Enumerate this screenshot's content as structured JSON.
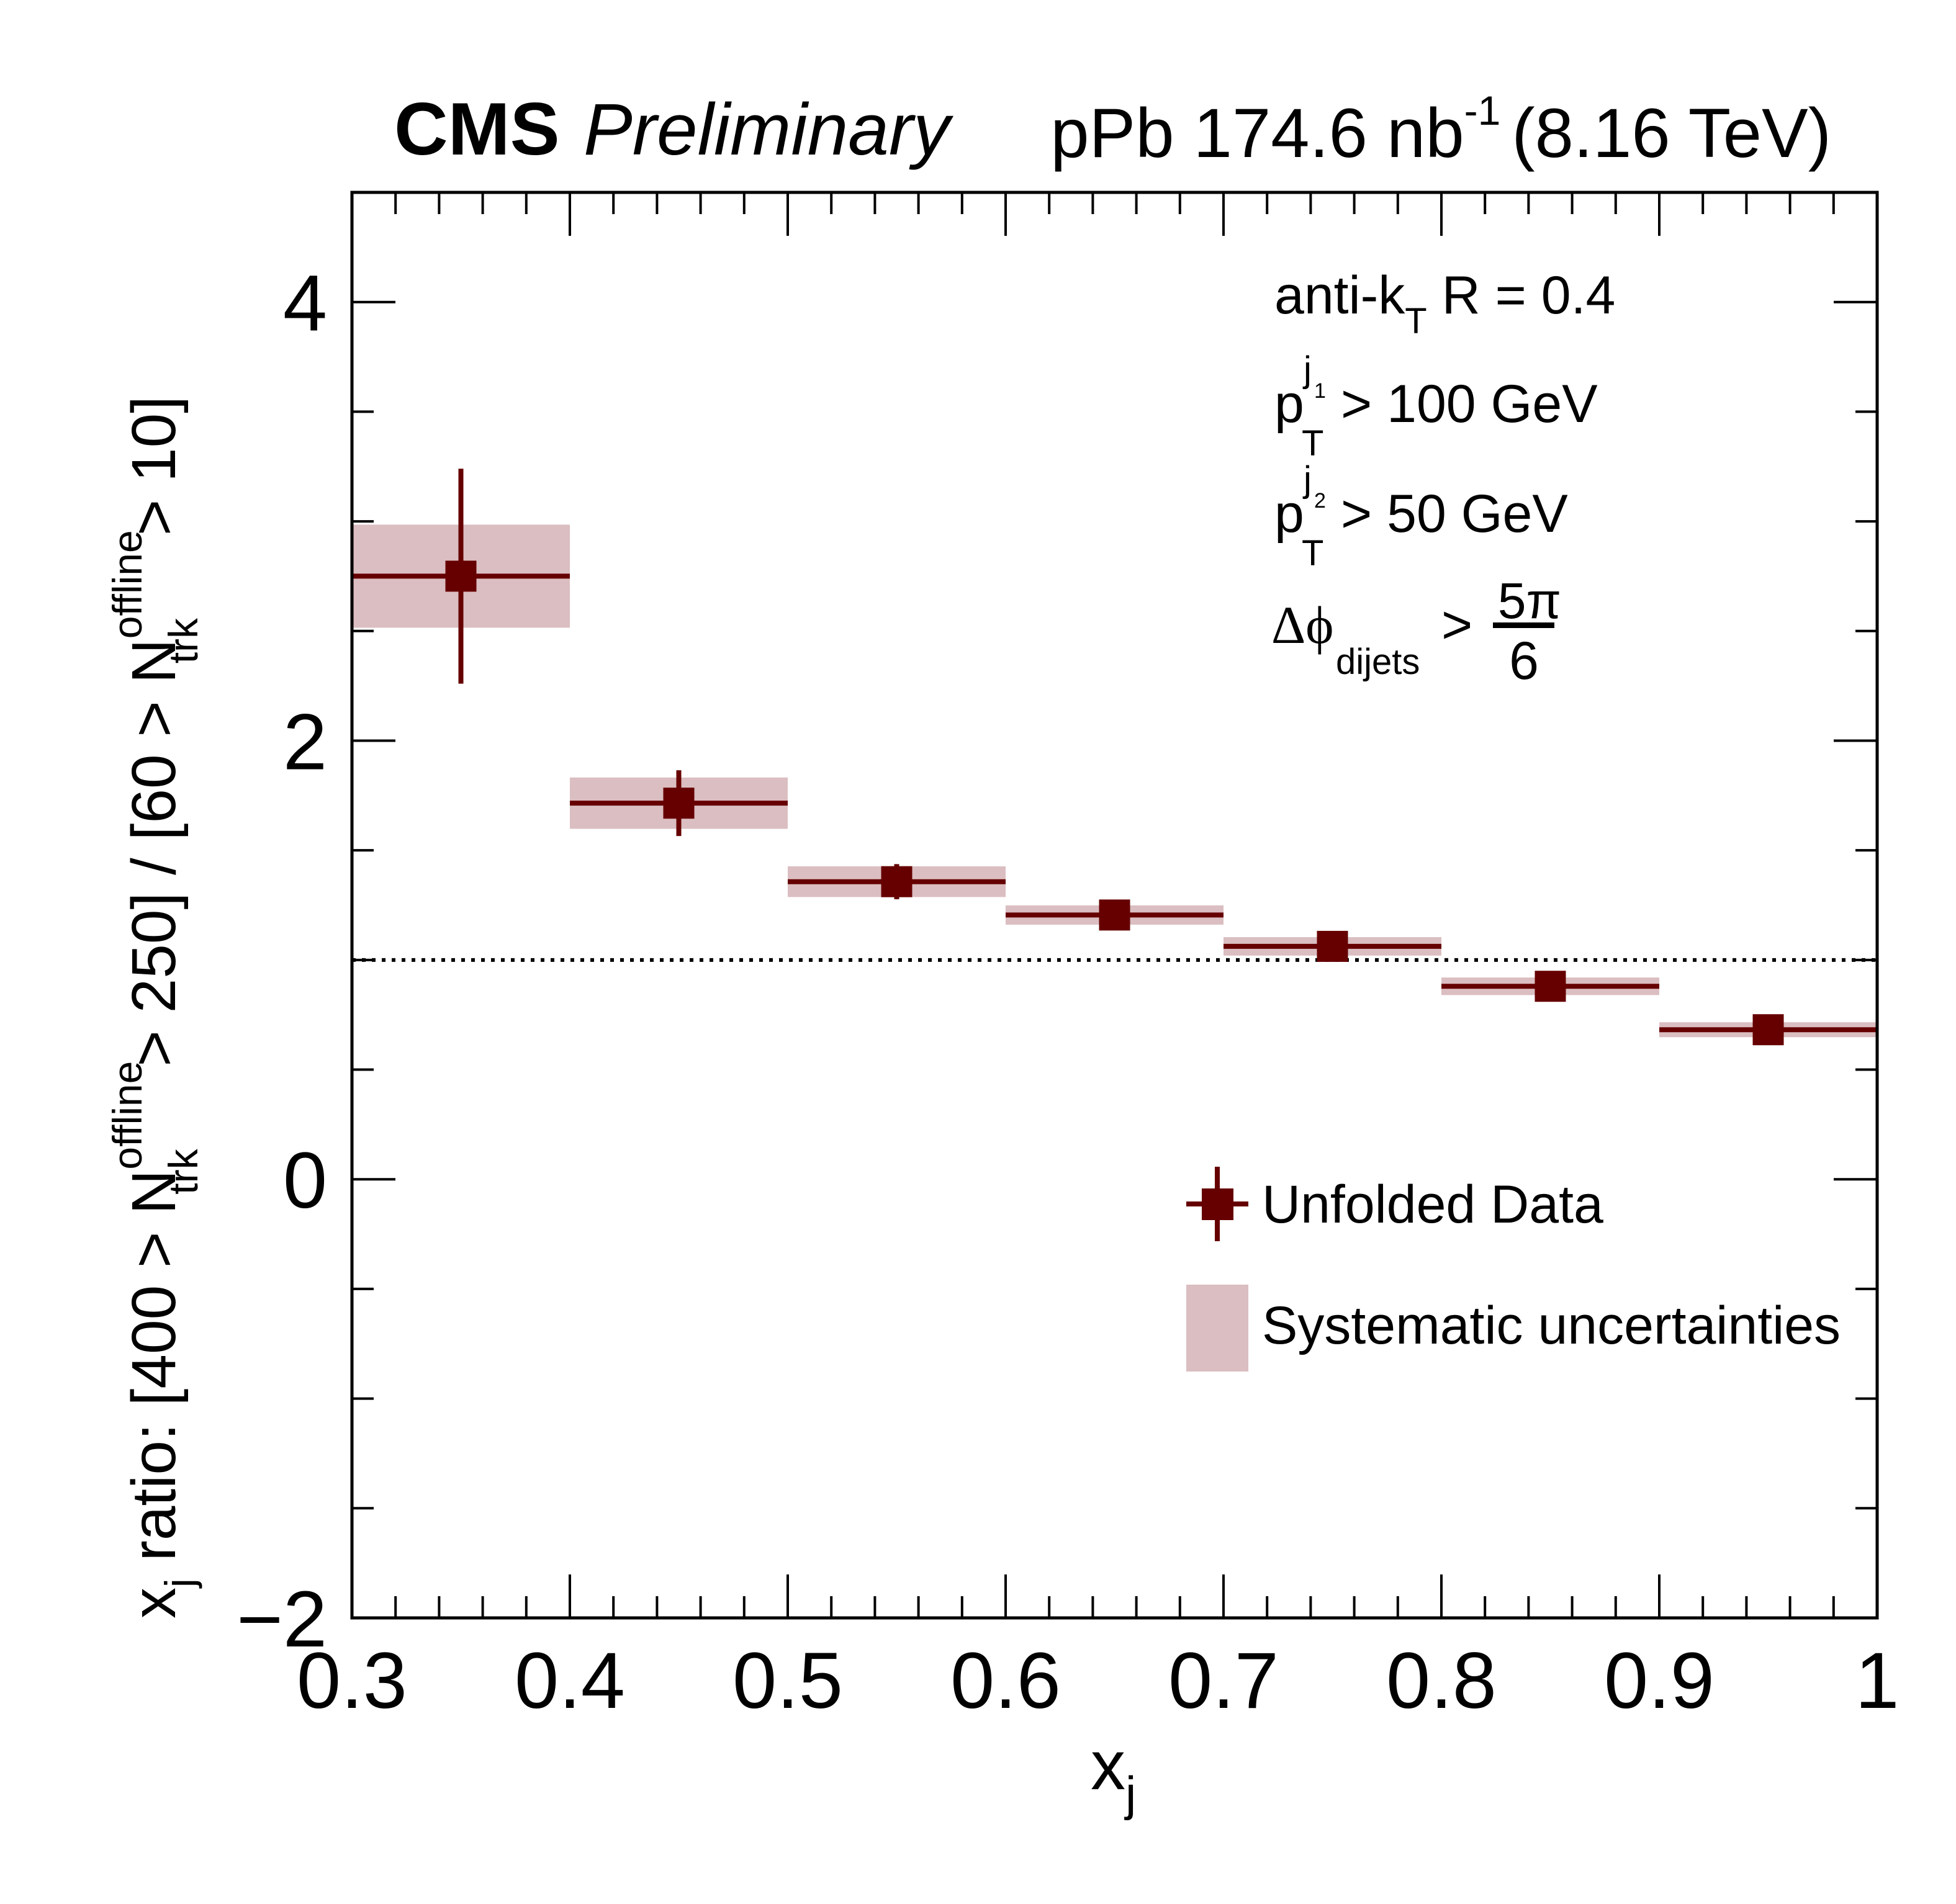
{
  "chart_data": {
    "type": "scatter",
    "title": {
      "experiment": "CMS",
      "status": "Preliminary",
      "lumi_prefix": "pPb 174.6 nb",
      "lumi_exponent": "-1",
      "energy": "(8.16 TeV)"
    },
    "xlabel": {
      "main": "x",
      "sub": "j"
    },
    "ylabel": {
      "p1": "x",
      "p1_sub": "j",
      "p2": " ratio: [400 > N",
      "n1_sup": "offline",
      "n1_sub": "trk",
      "p3": " > 250] / [60 > N",
      "n2_sup": "offline",
      "n2_sub": "trk",
      "p4": " > 10]"
    },
    "xlim": [
      0.3,
      1.0
    ],
    "ylim": [
      -2,
      4.5
    ],
    "x_ticks": [
      0.3,
      0.4,
      0.5,
      0.6,
      0.7,
      0.8,
      0.9,
      1.0
    ],
    "x_tick_labels": [
      "0.3",
      "0.4",
      "0.5",
      "0.6",
      "0.7",
      "0.8",
      "0.9",
      "1"
    ],
    "x_minor_step": 0.02,
    "y_ticks": [
      -2,
      0,
      2,
      4
    ],
    "y_tick_labels": [
      "−2",
      "0",
      "2",
      "4"
    ],
    "y_minor_step": 0.5,
    "reference_line": {
      "y": 1,
      "style": "dotted"
    },
    "series": [
      {
        "name": "Unfolded Data",
        "color": "#660000",
        "syst_color": "#dbbec1",
        "points": [
          {
            "x": 0.35,
            "x_low": 0.3,
            "x_high": 0.4,
            "y": 2.75,
            "stat": 0.49,
            "syst": 0.235
          },
          {
            "x": 0.45,
            "x_low": 0.4,
            "x_high": 0.5,
            "y": 1.715,
            "stat": 0.15,
            "syst": 0.117
          },
          {
            "x": 0.55,
            "x_low": 0.5,
            "x_high": 0.6,
            "y": 1.357,
            "stat": 0.08,
            "syst": 0.07
          },
          {
            "x": 0.65,
            "x_low": 0.6,
            "x_high": 0.7,
            "y": 1.205,
            "stat": 0.04,
            "syst": 0.044
          },
          {
            "x": 0.75,
            "x_low": 0.7,
            "x_high": 0.8,
            "y": 1.062,
            "stat": 0.03,
            "syst": 0.042
          },
          {
            "x": 0.85,
            "x_low": 0.8,
            "x_high": 0.9,
            "y": 0.88,
            "stat": 0.03,
            "syst": 0.04
          },
          {
            "x": 0.95,
            "x_low": 0.9,
            "x_high": 1.0,
            "y": 0.682,
            "stat": 0.02,
            "syst": 0.034
          }
        ]
      }
    ],
    "legend": {
      "position": "lower-right",
      "entries": [
        {
          "label": "Unfolded Data",
          "kind": "marker-errorbar"
        },
        {
          "label": "Systematic uncertainties",
          "kind": "box"
        }
      ]
    },
    "annotations": {
      "position": "top-right",
      "line1": {
        "pre": "anti-k",
        "sub": "T",
        "post": " R = 0.4"
      },
      "line2": {
        "p": "p",
        "sub": "T",
        "sup": "j",
        "sup_sub": "1",
        "post": " > 100 GeV"
      },
      "line3": {
        "p": "p",
        "sub": "T",
        "sup": "j",
        "sup_sub": "2",
        "post": " > 50 GeV"
      },
      "line4": {
        "pre": "Δϕ",
        "sub": "dijets",
        "gt": ">",
        "num": "5π",
        "den": "6"
      }
    }
  }
}
